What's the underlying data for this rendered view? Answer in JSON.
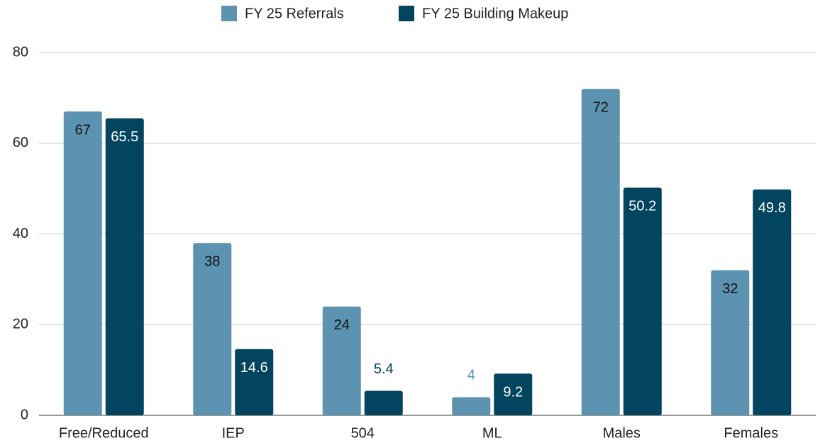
{
  "chart_data": {
    "type": "bar",
    "categories": [
      "Free/Reduced",
      "IEP",
      "504",
      "ML",
      "Males",
      "Females"
    ],
    "series": [
      {
        "name": "FY 25 Referrals",
        "color": "#5b93b0",
        "values": [
          67,
          38,
          24,
          4,
          72,
          32
        ]
      },
      {
        "name": "FY 25 Building Makeup",
        "color": "#03445f",
        "values": [
          65.5,
          14.6,
          5.4,
          9.2,
          50.2,
          49.8
        ]
      }
    ],
    "ylim": [
      0,
      80
    ],
    "yticks": [
      0,
      20,
      40,
      60,
      80
    ],
    "grid": true,
    "legend": "top"
  }
}
